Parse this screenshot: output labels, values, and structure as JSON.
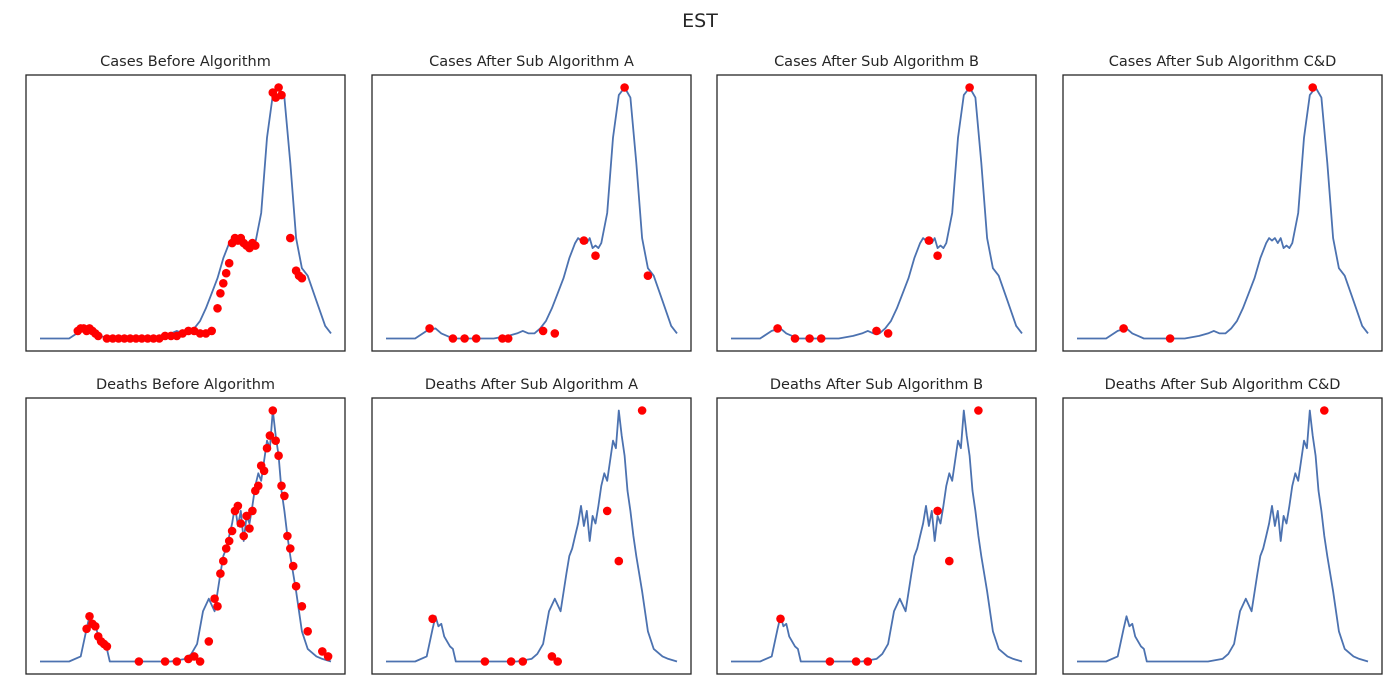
{
  "figure": {
    "suptitle": "EST"
  },
  "colors": {
    "line": "#4c72b0",
    "marker": "#ff0000",
    "frame": "#262626"
  },
  "chart_data": [
    {
      "type": "line",
      "title": "Cases Before Algorithm",
      "xlim": [
        0,
        1
      ],
      "ylim": [
        -0.05,
        1.05
      ],
      "x": [
        0.0,
        0.1,
        0.14,
        0.17,
        0.19,
        0.21,
        0.23,
        0.27,
        0.32,
        0.37,
        0.42,
        0.45,
        0.47,
        0.49,
        0.51,
        0.53,
        0.55,
        0.57,
        0.59,
        0.61,
        0.63,
        0.65,
        0.66,
        0.67,
        0.68,
        0.69,
        0.7,
        0.71,
        0.72,
        0.73,
        0.74,
        0.76,
        0.78,
        0.8,
        0.82,
        0.84,
        0.86,
        0.88,
        0.9,
        0.92,
        0.95,
        0.98,
        1.0
      ],
      "y": [
        0.0,
        0.0,
        0.03,
        0.04,
        0.02,
        0.01,
        0.0,
        0.0,
        0.0,
        0.0,
        0.01,
        0.02,
        0.03,
        0.02,
        0.02,
        0.04,
        0.07,
        0.12,
        0.18,
        0.24,
        0.32,
        0.38,
        0.4,
        0.39,
        0.4,
        0.38,
        0.4,
        0.36,
        0.37,
        0.36,
        0.38,
        0.5,
        0.8,
        0.97,
        1.0,
        0.96,
        0.7,
        0.4,
        0.28,
        0.25,
        0.15,
        0.05,
        0.02
      ],
      "markers": {
        "x": [
          0.13,
          0.14,
          0.15,
          0.16,
          0.17,
          0.18,
          0.19,
          0.2,
          0.23,
          0.25,
          0.27,
          0.29,
          0.31,
          0.33,
          0.35,
          0.37,
          0.39,
          0.41,
          0.43,
          0.45,
          0.47,
          0.49,
          0.51,
          0.53,
          0.55,
          0.57,
          0.59,
          0.61,
          0.62,
          0.63,
          0.64,
          0.65,
          0.66,
          0.67,
          0.68,
          0.69,
          0.7,
          0.71,
          0.72,
          0.73,
          0.74,
          0.8,
          0.81,
          0.82,
          0.83,
          0.86,
          0.88,
          0.89,
          0.9
        ],
        "y": [
          0.03,
          0.04,
          0.04,
          0.03,
          0.04,
          0.03,
          0.02,
          0.01,
          0.0,
          0.0,
          0.0,
          0.0,
          0.0,
          0.0,
          0.0,
          0.0,
          0.0,
          0.0,
          0.01,
          0.01,
          0.01,
          0.02,
          0.03,
          0.03,
          0.02,
          0.02,
          0.03,
          0.12,
          0.18,
          0.22,
          0.26,
          0.3,
          0.38,
          0.4,
          0.39,
          0.4,
          0.38,
          0.37,
          0.36,
          0.38,
          0.37,
          0.98,
          0.96,
          1.0,
          0.97,
          0.4,
          0.27,
          0.25,
          0.24
        ]
      }
    },
    {
      "type": "line",
      "title": "Cases After Sub Algorithm A",
      "xlim": [
        0,
        1
      ],
      "ylim": [
        -0.05,
        1.05
      ],
      "x": [
        0.0,
        0.1,
        0.14,
        0.17,
        0.19,
        0.21,
        0.23,
        0.27,
        0.32,
        0.37,
        0.42,
        0.45,
        0.47,
        0.49,
        0.51,
        0.53,
        0.55,
        0.57,
        0.59,
        0.61,
        0.63,
        0.65,
        0.66,
        0.67,
        0.68,
        0.69,
        0.7,
        0.71,
        0.72,
        0.73,
        0.74,
        0.76,
        0.78,
        0.8,
        0.82,
        0.84,
        0.86,
        0.88,
        0.9,
        0.92,
        0.95,
        0.98,
        1.0
      ],
      "y": [
        0.0,
        0.0,
        0.03,
        0.04,
        0.02,
        0.01,
        0.0,
        0.0,
        0.0,
        0.0,
        0.01,
        0.02,
        0.03,
        0.02,
        0.02,
        0.04,
        0.07,
        0.12,
        0.18,
        0.24,
        0.32,
        0.38,
        0.4,
        0.39,
        0.4,
        0.38,
        0.4,
        0.36,
        0.37,
        0.36,
        0.38,
        0.5,
        0.8,
        0.97,
        1.0,
        0.96,
        0.7,
        0.4,
        0.28,
        0.25,
        0.15,
        0.05,
        0.02
      ],
      "markers": {
        "x": [
          0.15,
          0.23,
          0.27,
          0.31,
          0.4,
          0.42,
          0.54,
          0.58,
          0.68,
          0.72,
          0.82,
          0.9
        ],
        "y": [
          0.04,
          0.0,
          0.0,
          0.0,
          0.0,
          0.0,
          0.03,
          0.02,
          0.39,
          0.33,
          1.0,
          0.25
        ]
      }
    },
    {
      "type": "line",
      "title": "Cases After Sub Algorithm B",
      "xlim": [
        0,
        1
      ],
      "ylim": [
        -0.05,
        1.05
      ],
      "x": [
        0.0,
        0.1,
        0.14,
        0.17,
        0.19,
        0.21,
        0.23,
        0.27,
        0.32,
        0.37,
        0.42,
        0.45,
        0.47,
        0.49,
        0.51,
        0.53,
        0.55,
        0.57,
        0.59,
        0.61,
        0.63,
        0.65,
        0.66,
        0.67,
        0.68,
        0.69,
        0.7,
        0.71,
        0.72,
        0.73,
        0.74,
        0.76,
        0.78,
        0.8,
        0.82,
        0.84,
        0.86,
        0.88,
        0.9,
        0.92,
        0.95,
        0.98,
        1.0
      ],
      "y": [
        0.0,
        0.0,
        0.03,
        0.04,
        0.02,
        0.01,
        0.0,
        0.0,
        0.0,
        0.0,
        0.01,
        0.02,
        0.03,
        0.02,
        0.02,
        0.04,
        0.07,
        0.12,
        0.18,
        0.24,
        0.32,
        0.38,
        0.4,
        0.39,
        0.4,
        0.38,
        0.4,
        0.36,
        0.37,
        0.36,
        0.38,
        0.5,
        0.8,
        0.97,
        1.0,
        0.96,
        0.7,
        0.4,
        0.28,
        0.25,
        0.15,
        0.05,
        0.02
      ],
      "markers": {
        "x": [
          0.16,
          0.22,
          0.27,
          0.31,
          0.5,
          0.54,
          0.68,
          0.71,
          0.82
        ],
        "y": [
          0.04,
          0.0,
          0.0,
          0.0,
          0.03,
          0.02,
          0.39,
          0.33,
          1.0
        ]
      }
    },
    {
      "type": "line",
      "title": "Cases After Sub Algorithm C&D",
      "xlim": [
        0,
        1
      ],
      "ylim": [
        -0.05,
        1.05
      ],
      "x": [
        0.0,
        0.1,
        0.14,
        0.17,
        0.19,
        0.21,
        0.23,
        0.27,
        0.32,
        0.37,
        0.42,
        0.45,
        0.47,
        0.49,
        0.51,
        0.53,
        0.55,
        0.57,
        0.59,
        0.61,
        0.63,
        0.65,
        0.66,
        0.67,
        0.68,
        0.69,
        0.7,
        0.71,
        0.72,
        0.73,
        0.74,
        0.76,
        0.78,
        0.8,
        0.82,
        0.84,
        0.86,
        0.88,
        0.9,
        0.92,
        0.95,
        0.98,
        1.0
      ],
      "y": [
        0.0,
        0.0,
        0.03,
        0.04,
        0.02,
        0.01,
        0.0,
        0.0,
        0.0,
        0.0,
        0.01,
        0.02,
        0.03,
        0.02,
        0.02,
        0.04,
        0.07,
        0.12,
        0.18,
        0.24,
        0.32,
        0.38,
        0.4,
        0.39,
        0.4,
        0.38,
        0.4,
        0.36,
        0.37,
        0.36,
        0.38,
        0.5,
        0.8,
        0.97,
        1.0,
        0.96,
        0.7,
        0.4,
        0.28,
        0.25,
        0.15,
        0.05,
        0.02
      ],
      "markers": {
        "x": [
          0.16,
          0.32,
          0.81
        ],
        "y": [
          0.04,
          0.0,
          1.0
        ]
      }
    },
    {
      "type": "line",
      "title": "Deaths Before Algorithm",
      "xlim": [
        0,
        1
      ],
      "ylim": [
        -0.05,
        1.05
      ],
      "x": [
        0.0,
        0.1,
        0.14,
        0.16,
        0.17,
        0.18,
        0.19,
        0.2,
        0.21,
        0.22,
        0.23,
        0.24,
        0.26,
        0.3,
        0.35,
        0.4,
        0.45,
        0.5,
        0.52,
        0.54,
        0.56,
        0.58,
        0.6,
        0.62,
        0.63,
        0.64,
        0.65,
        0.66,
        0.67,
        0.68,
        0.69,
        0.7,
        0.71,
        0.72,
        0.73,
        0.74,
        0.75,
        0.76,
        0.77,
        0.78,
        0.79,
        0.8,
        0.81,
        0.82,
        0.83,
        0.84,
        0.85,
        0.86,
        0.87,
        0.88,
        0.9,
        0.92,
        0.95,
        0.97,
        1.0
      ],
      "y": [
        0.0,
        0.0,
        0.02,
        0.13,
        0.18,
        0.14,
        0.15,
        0.1,
        0.08,
        0.06,
        0.05,
        0.0,
        0.0,
        0.0,
        0.0,
        0.0,
        0.0,
        0.01,
        0.03,
        0.07,
        0.2,
        0.25,
        0.2,
        0.35,
        0.42,
        0.45,
        0.5,
        0.55,
        0.62,
        0.54,
        0.6,
        0.48,
        0.58,
        0.55,
        0.62,
        0.7,
        0.75,
        0.72,
        0.8,
        0.88,
        0.85,
        1.0,
        0.9,
        0.82,
        0.68,
        0.6,
        0.5,
        0.42,
        0.35,
        0.28,
        0.12,
        0.05,
        0.02,
        0.01,
        0.0
      ],
      "markers": {
        "x": [
          0.16,
          0.17,
          0.18,
          0.19,
          0.2,
          0.21,
          0.22,
          0.23,
          0.34,
          0.43,
          0.47,
          0.51,
          0.53,
          0.55,
          0.58,
          0.6,
          0.61,
          0.62,
          0.63,
          0.64,
          0.65,
          0.66,
          0.67,
          0.68,
          0.69,
          0.7,
          0.71,
          0.72,
          0.73,
          0.74,
          0.75,
          0.76,
          0.77,
          0.78,
          0.79,
          0.8,
          0.81,
          0.82,
          0.83,
          0.84,
          0.85,
          0.86,
          0.87,
          0.88,
          0.9,
          0.92,
          0.97,
          0.99
        ],
        "y": [
          0.13,
          0.18,
          0.15,
          0.14,
          0.1,
          0.08,
          0.07,
          0.06,
          0.0,
          0.0,
          0.0,
          0.01,
          0.02,
          0.0,
          0.08,
          0.25,
          0.22,
          0.35,
          0.4,
          0.45,
          0.48,
          0.52,
          0.6,
          0.62,
          0.55,
          0.5,
          0.58,
          0.53,
          0.6,
          0.68,
          0.7,
          0.78,
          0.76,
          0.85,
          0.9,
          1.0,
          0.88,
          0.82,
          0.7,
          0.66,
          0.5,
          0.45,
          0.38,
          0.3,
          0.22,
          0.12,
          0.04,
          0.02
        ]
      }
    },
    {
      "type": "line",
      "title": "Deaths After Sub Algorithm A",
      "xlim": [
        0,
        1
      ],
      "ylim": [
        -0.05,
        1.05
      ],
      "x": [
        0.0,
        0.1,
        0.14,
        0.16,
        0.17,
        0.18,
        0.19,
        0.2,
        0.21,
        0.22,
        0.23,
        0.24,
        0.26,
        0.3,
        0.35,
        0.4,
        0.45,
        0.5,
        0.52,
        0.54,
        0.56,
        0.58,
        0.6,
        0.62,
        0.63,
        0.64,
        0.65,
        0.66,
        0.67,
        0.68,
        0.69,
        0.7,
        0.71,
        0.72,
        0.73,
        0.74,
        0.75,
        0.76,
        0.77,
        0.78,
        0.79,
        0.8,
        0.81,
        0.82,
        0.83,
        0.84,
        0.85,
        0.86,
        0.87,
        0.88,
        0.9,
        0.92,
        0.95,
        0.97,
        1.0
      ],
      "y": [
        0.0,
        0.0,
        0.02,
        0.13,
        0.18,
        0.14,
        0.15,
        0.1,
        0.08,
        0.06,
        0.05,
        0.0,
        0.0,
        0.0,
        0.0,
        0.0,
        0.0,
        0.01,
        0.03,
        0.07,
        0.2,
        0.25,
        0.2,
        0.35,
        0.42,
        0.45,
        0.5,
        0.55,
        0.62,
        0.54,
        0.6,
        0.48,
        0.58,
        0.55,
        0.62,
        0.7,
        0.75,
        0.72,
        0.8,
        0.88,
        0.85,
        1.0,
        0.9,
        0.82,
        0.68,
        0.6,
        0.5,
        0.42,
        0.35,
        0.28,
        0.12,
        0.05,
        0.02,
        0.01,
        0.0
      ],
      "markers": {
        "x": [
          0.16,
          0.34,
          0.43,
          0.47,
          0.57,
          0.59,
          0.76,
          0.8,
          0.88
        ],
        "y": [
          0.17,
          0.0,
          0.0,
          0.0,
          0.02,
          0.0,
          0.6,
          0.4,
          1.0
        ]
      }
    },
    {
      "type": "line",
      "title": "Deaths After Sub Algorithm B",
      "xlim": [
        0,
        1
      ],
      "ylim": [
        -0.05,
        1.05
      ],
      "x": [
        0.0,
        0.1,
        0.14,
        0.16,
        0.17,
        0.18,
        0.19,
        0.2,
        0.21,
        0.22,
        0.23,
        0.24,
        0.26,
        0.3,
        0.35,
        0.4,
        0.45,
        0.5,
        0.52,
        0.54,
        0.56,
        0.58,
        0.6,
        0.62,
        0.63,
        0.64,
        0.65,
        0.66,
        0.67,
        0.68,
        0.69,
        0.7,
        0.71,
        0.72,
        0.73,
        0.74,
        0.75,
        0.76,
        0.77,
        0.78,
        0.79,
        0.8,
        0.81,
        0.82,
        0.83,
        0.84,
        0.85,
        0.86,
        0.87,
        0.88,
        0.9,
        0.92,
        0.95,
        0.97,
        1.0
      ],
      "y": [
        0.0,
        0.0,
        0.02,
        0.13,
        0.18,
        0.14,
        0.15,
        0.1,
        0.08,
        0.06,
        0.05,
        0.0,
        0.0,
        0.0,
        0.0,
        0.0,
        0.0,
        0.01,
        0.03,
        0.07,
        0.2,
        0.25,
        0.2,
        0.35,
        0.42,
        0.45,
        0.5,
        0.55,
        0.62,
        0.54,
        0.6,
        0.48,
        0.58,
        0.55,
        0.62,
        0.7,
        0.75,
        0.72,
        0.8,
        0.88,
        0.85,
        1.0,
        0.9,
        0.82,
        0.68,
        0.6,
        0.5,
        0.42,
        0.35,
        0.28,
        0.12,
        0.05,
        0.02,
        0.01,
        0.0
      ],
      "markers": {
        "x": [
          0.17,
          0.34,
          0.43,
          0.47,
          0.71,
          0.75,
          0.85
        ],
        "y": [
          0.17,
          0.0,
          0.0,
          0.0,
          0.6,
          0.4,
          1.0
        ]
      }
    },
    {
      "type": "line",
      "title": "Deaths After Sub Algorithm C&D",
      "xlim": [
        0,
        1
      ],
      "ylim": [
        -0.05,
        1.05
      ],
      "x": [
        0.0,
        0.1,
        0.14,
        0.16,
        0.17,
        0.18,
        0.19,
        0.2,
        0.21,
        0.22,
        0.23,
        0.24,
        0.26,
        0.3,
        0.35,
        0.4,
        0.45,
        0.5,
        0.52,
        0.54,
        0.56,
        0.58,
        0.6,
        0.62,
        0.63,
        0.64,
        0.65,
        0.66,
        0.67,
        0.68,
        0.69,
        0.7,
        0.71,
        0.72,
        0.73,
        0.74,
        0.75,
        0.76,
        0.77,
        0.78,
        0.79,
        0.8,
        0.81,
        0.82,
        0.83,
        0.84,
        0.85,
        0.86,
        0.87,
        0.88,
        0.9,
        0.92,
        0.95,
        0.97,
        1.0
      ],
      "y": [
        0.0,
        0.0,
        0.02,
        0.13,
        0.18,
        0.14,
        0.15,
        0.1,
        0.08,
        0.06,
        0.05,
        0.0,
        0.0,
        0.0,
        0.0,
        0.0,
        0.0,
        0.01,
        0.03,
        0.07,
        0.2,
        0.25,
        0.2,
        0.35,
        0.42,
        0.45,
        0.5,
        0.55,
        0.62,
        0.54,
        0.6,
        0.48,
        0.58,
        0.55,
        0.62,
        0.7,
        0.75,
        0.72,
        0.8,
        0.88,
        0.85,
        1.0,
        0.9,
        0.82,
        0.68,
        0.6,
        0.5,
        0.42,
        0.35,
        0.28,
        0.12,
        0.05,
        0.02,
        0.01,
        0.0
      ],
      "markers": {
        "x": [
          0.85
        ],
        "y": [
          1.0
        ]
      }
    }
  ]
}
